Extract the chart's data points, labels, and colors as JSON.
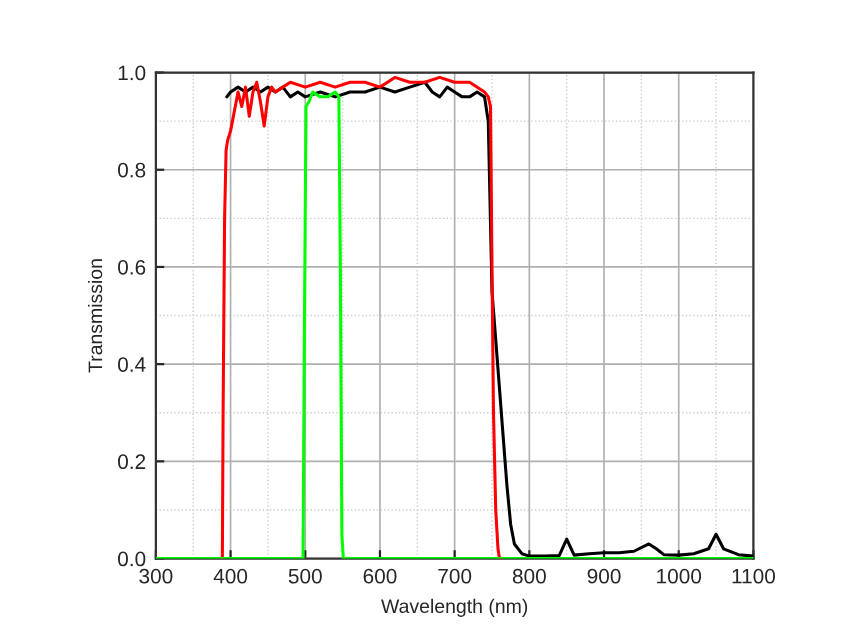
{
  "chart_data": {
    "type": "line",
    "xlabel": "Wavelength (nm)",
    "ylabel": "Transmission",
    "xlim": [
      300,
      1100
    ],
    "xticks": [
      300,
      400,
      500,
      600,
      700,
      800,
      900,
      1000,
      1100
    ],
    "ylim": [
      0,
      1.0
    ],
    "yticks": [
      {
        "value": 0,
        "label": "0.0"
      },
      {
        "value": 0.2,
        "label": "0.2"
      },
      {
        "value": 0.4,
        "label": "0.4"
      },
      {
        "value": 0.6,
        "label": "0.6"
      },
      {
        "value": 0.8,
        "label": "0.8"
      },
      {
        "value": 1.0,
        "label": "1.0"
      }
    ],
    "grid": true,
    "line_style": "solid",
    "series": [
      {
        "color": "#000000",
        "x": [
          395,
          400,
          410,
          420,
          430,
          440,
          450,
          460,
          470,
          480,
          490,
          500,
          520,
          540,
          560,
          580,
          600,
          620,
          640,
          660,
          670,
          680,
          690,
          700,
          710,
          720,
          730,
          740,
          745,
          750,
          755,
          760,
          765,
          770,
          775,
          780,
          790,
          800,
          820,
          840,
          850,
          860,
          880,
          900,
          920,
          940,
          960,
          970,
          980,
          1000,
          1020,
          1040,
          1050,
          1060,
          1080,
          1100
        ],
        "values": [
          0.95,
          0.96,
          0.97,
          0.96,
          0.97,
          0.96,
          0.97,
          0.96,
          0.97,
          0.95,
          0.96,
          0.95,
          0.96,
          0.95,
          0.96,
          0.96,
          0.97,
          0.96,
          0.97,
          0.98,
          0.96,
          0.95,
          0.97,
          0.96,
          0.95,
          0.95,
          0.96,
          0.95,
          0.9,
          0.55,
          0.45,
          0.35,
          0.25,
          0.15,
          0.07,
          0.03,
          0.01,
          0.005,
          0.005,
          0.006,
          0.04,
          0.007,
          0.01,
          0.012,
          0.012,
          0.015,
          0.03,
          0.02,
          0.008,
          0.007,
          0.01,
          0.02,
          0.05,
          0.02,
          0.008,
          0.005
        ]
      },
      {
        "color": "#ff0000",
        "x": [
          385,
          389,
          390,
          392,
          394,
          396,
          400,
          405,
          410,
          415,
          420,
          425,
          430,
          435,
          440,
          445,
          450,
          455,
          460,
          470,
          480,
          500,
          520,
          540,
          560,
          580,
          600,
          620,
          640,
          660,
          680,
          700,
          720,
          740,
          745,
          748,
          750,
          752,
          755,
          758,
          760,
          765
        ],
        "values": [
          0,
          0,
          0.3,
          0.7,
          0.84,
          0.86,
          0.88,
          0.92,
          0.96,
          0.93,
          0.97,
          0.91,
          0.96,
          0.98,
          0.94,
          0.89,
          0.95,
          0.97,
          0.96,
          0.97,
          0.98,
          0.97,
          0.98,
          0.97,
          0.98,
          0.98,
          0.97,
          0.99,
          0.98,
          0.98,
          0.99,
          0.98,
          0.98,
          0.96,
          0.95,
          0.93,
          0.6,
          0.3,
          0.1,
          0.02,
          0,
          0
        ]
      },
      {
        "color": "#00ff00",
        "x": [
          300,
          400,
          497,
          499,
          501,
          505,
          510,
          520,
          530,
          540,
          545,
          547,
          549,
          551,
          600,
          700,
          800,
          900,
          1000,
          1100
        ],
        "values": [
          0,
          0,
          0,
          0.5,
          0.93,
          0.94,
          0.96,
          0.95,
          0.95,
          0.96,
          0.95,
          0.6,
          0.05,
          0,
          0,
          0,
          0,
          0,
          0,
          0
        ]
      }
    ]
  }
}
